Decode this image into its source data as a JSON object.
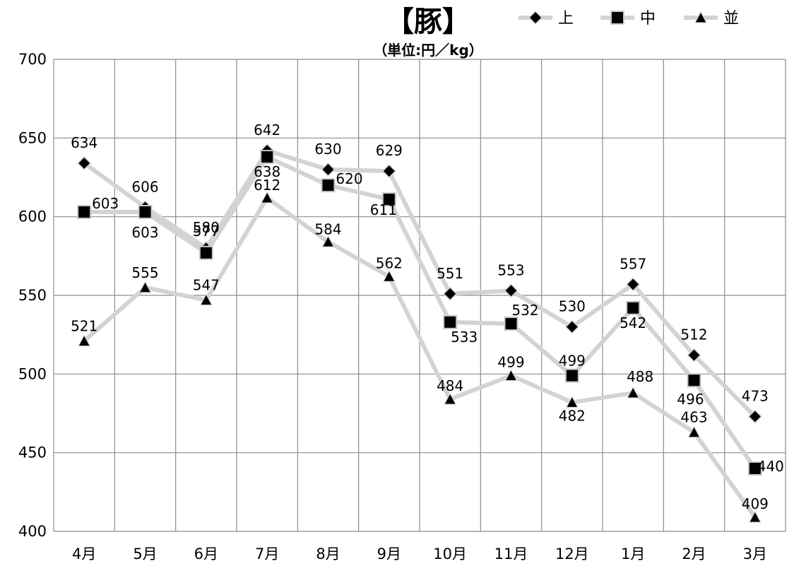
{
  "chart_data": {
    "type": "line",
    "title": "【豚】",
    "subtitle": "（単位:円／kg）",
    "categories": [
      "4月",
      "5月",
      "6月",
      "7月",
      "8月",
      "9月",
      "10月",
      "11月",
      "12月",
      "1月",
      "2月",
      "3月"
    ],
    "series": [
      {
        "name": "上",
        "marker": "diamond",
        "values": [
          634,
          606,
          580,
          642,
          630,
          629,
          551,
          553,
          530,
          557,
          512,
          473
        ]
      },
      {
        "name": "中",
        "marker": "square",
        "values": [
          603,
          603,
          577,
          638,
          620,
          611,
          533,
          532,
          499,
          542,
          496,
          440
        ]
      },
      {
        "name": "並",
        "marker": "triangle",
        "values": [
          521,
          555,
          547,
          612,
          584,
          562,
          484,
          499,
          482,
          488,
          463,
          409
        ]
      }
    ],
    "ylim": [
      400,
      700
    ],
    "yticks": [
      400,
      450,
      500,
      550,
      600,
      650,
      700
    ],
    "grid": true,
    "legend_position": "top-right",
    "colors": {
      "line": "#d3d3d3",
      "marker": "#000000",
      "grid": "#8c8c8c"
    }
  }
}
